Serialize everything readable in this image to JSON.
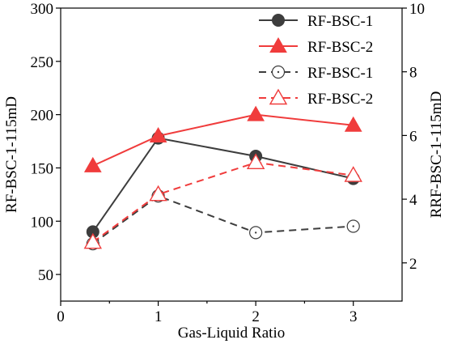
{
  "chart_data": {
    "type": "line",
    "xlabel": "Gas-Liquid Ratio",
    "ylabel_left": "RF-BSC-1-115mD",
    "ylabel_right": "RRF-BSC-1-115mD",
    "xlim": [
      0,
      3.5
    ],
    "ylim_left": [
      25,
      300
    ],
    "ylim_right": [
      0.8,
      10
    ],
    "x_ticks": [
      0,
      1,
      2,
      3
    ],
    "y_left_ticks": [
      50,
      100,
      150,
      200,
      250,
      300
    ],
    "y_right_ticks": [
      2,
      4,
      6,
      8,
      10
    ],
    "legend_position": "top-right",
    "series": [
      {
        "name": "RF-BSC-1",
        "axis": "left",
        "color": "#3d3d3d",
        "line_style": "solid",
        "marker": "filled-circle",
        "x": [
          0.33,
          1,
          2,
          3
        ],
        "y": [
          90,
          178,
          161,
          140
        ]
      },
      {
        "name": "RF-BSC-2",
        "axis": "left",
        "color": "#f03c3c",
        "line_style": "solid",
        "marker": "filled-triangle",
        "x": [
          0.33,
          1,
          2,
          3
        ],
        "y": [
          152,
          180,
          200,
          190
        ]
      },
      {
        "name": "RF-BSC-1",
        "axis": "right",
        "color": "#3d3d3d",
        "line_style": "dashed",
        "marker": "open-circle-dot",
        "x": [
          0.33,
          1,
          2,
          3
        ],
        "y": [
          2.6,
          4.1,
          2.95,
          3.15
        ]
      },
      {
        "name": "RF-BSC-2",
        "axis": "right",
        "color": "#f03c3c",
        "line_style": "dashed",
        "marker": "open-triangle",
        "x": [
          0.33,
          1,
          2,
          3
        ],
        "y": [
          2.65,
          4.15,
          5.15,
          4.75
        ]
      }
    ]
  }
}
